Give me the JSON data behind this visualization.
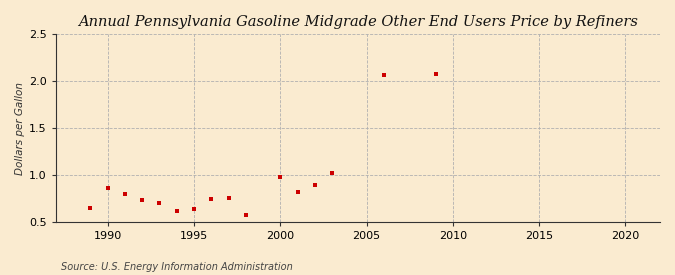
{
  "title": "Annual Pennsylvania Gasoline Midgrade Other End Users Price by Refiners",
  "ylabel": "Dollars per Gallon",
  "source": "Source: U.S. Energy Information Administration",
  "background_color": "#faebd0",
  "years": [
    1989,
    1990,
    1991,
    1992,
    1993,
    1994,
    1995,
    1996,
    1997,
    1998,
    2000,
    2001,
    2002,
    2003,
    2006,
    2009
  ],
  "values": [
    0.65,
    0.855,
    0.795,
    0.735,
    0.705,
    0.61,
    0.64,
    0.745,
    0.755,
    0.57,
    0.975,
    0.815,
    0.89,
    1.015,
    2.065,
    2.075
  ],
  "marker_color": "#cc0000",
  "xlim": [
    1987,
    2022
  ],
  "ylim": [
    0.5,
    2.5
  ],
  "yticks": [
    0.5,
    1.0,
    1.5,
    2.0,
    2.5
  ],
  "xticks": [
    1990,
    1995,
    2000,
    2005,
    2010,
    2015,
    2020
  ],
  "title_fontsize": 10.5,
  "label_fontsize": 7.5,
  "tick_fontsize": 8,
  "source_fontsize": 7
}
